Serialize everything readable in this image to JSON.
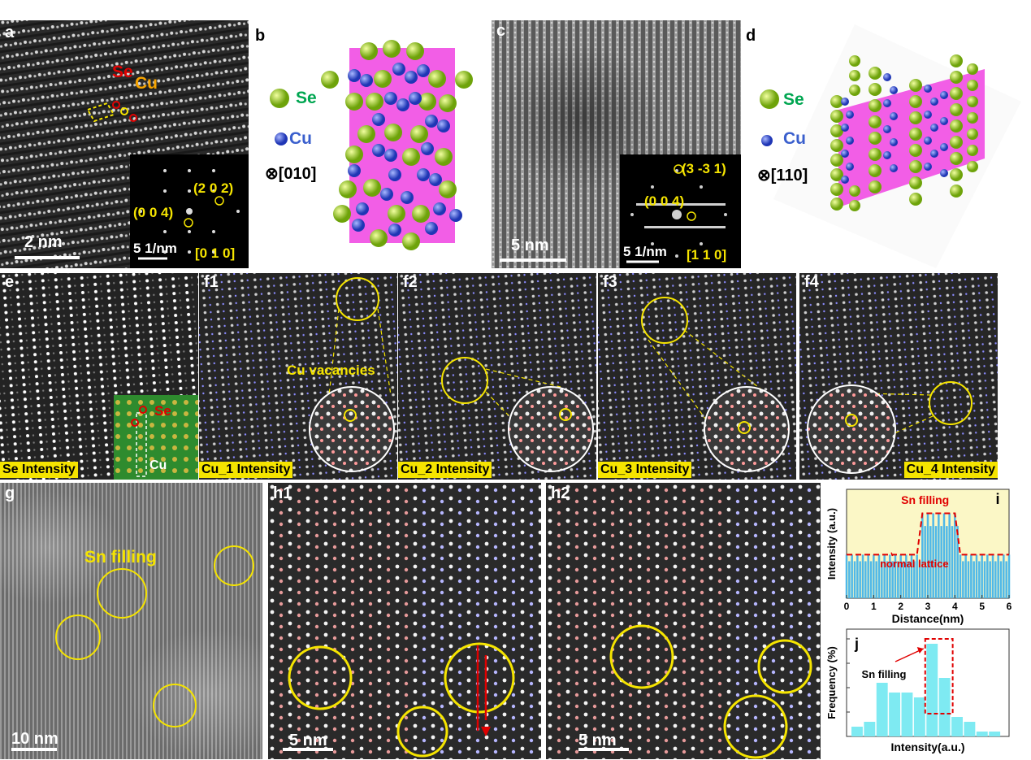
{
  "panels": {
    "a": {
      "label": "a",
      "se": "Se",
      "cu": "Cu",
      "fft_spot1": "(2 0 2)",
      "fft_spot2": "(0 0 4)",
      "fft_scale": "5 1/nm",
      "fft_zone": "[0 1 0]",
      "scale": "2 nm"
    },
    "b": {
      "label": "b",
      "legend_se": "Se",
      "legend_cu": "Cu",
      "zone": "⊗[010]"
    },
    "c": {
      "label": "c",
      "fft_spot1": "(3 -3 1)",
      "fft_spot2": "(0 0 4)",
      "fft_scale": "5 1/nm",
      "fft_zone": "[1 1 0]",
      "scale": "5 nm"
    },
    "d": {
      "label": "d",
      "legend_se": "Se",
      "legend_cu": "Cu",
      "zone": "⊗[110]"
    },
    "e": {
      "label": "e",
      "caption": "Se Intensity",
      "inset_se": "Se",
      "inset_cu": "Cu"
    },
    "f1": {
      "label": "f1",
      "caption": "Cu_1 Intensity",
      "note": "Cu vacancies"
    },
    "f2": {
      "label": "f2",
      "caption": "Cu_2 Intensity"
    },
    "f3": {
      "label": "f3",
      "caption": "Cu_3 Intensity"
    },
    "f4": {
      "label": "f4",
      "caption": "Cu_4 Intensity"
    },
    "g": {
      "label": "g",
      "note": "Sn filling",
      "scale": "10 nm"
    },
    "h1": {
      "label": "h1",
      "scale": "5 nm"
    },
    "h2": {
      "label": "h2",
      "scale": "5 nm"
    }
  },
  "colors": {
    "highlight": "#f5e400",
    "se_green": "#00a651",
    "cu_blue": "#3a5fcd",
    "se_label_red": "#e00000",
    "cu_label_orange": "#f5a300",
    "slab_magenta": "#f25ee6",
    "cyan_bar": "#7eeaf2"
  },
  "chart_data": [
    {
      "type": "area",
      "label": "i",
      "xlabel": "Distance(nm)",
      "ylabel": "Intensity (a.u.)",
      "xlim": [
        0,
        6
      ],
      "xticks": [
        "0",
        "1",
        "2",
        "3",
        "4",
        "5",
        "6"
      ],
      "annotation_top": "Sn filling",
      "annotation_bottom": "normal lattice",
      "step_profile": {
        "x": [
          0,
          2.6,
          2.8,
          3.6,
          4.0,
          4.2,
          6
        ],
        "y": [
          0.4,
          0.4,
          0.78,
          0.78,
          0.78,
          0.4,
          0.4
        ]
      }
    },
    {
      "type": "bar",
      "label": "j",
      "xlabel": "Intensity(a.u.)",
      "ylabel": "Frequency (%)",
      "annotation": "Sn filling",
      "values": [
        2,
        3,
        11,
        9,
        9,
        8,
        19,
        12,
        4,
        3,
        1,
        1
      ]
    }
  ]
}
